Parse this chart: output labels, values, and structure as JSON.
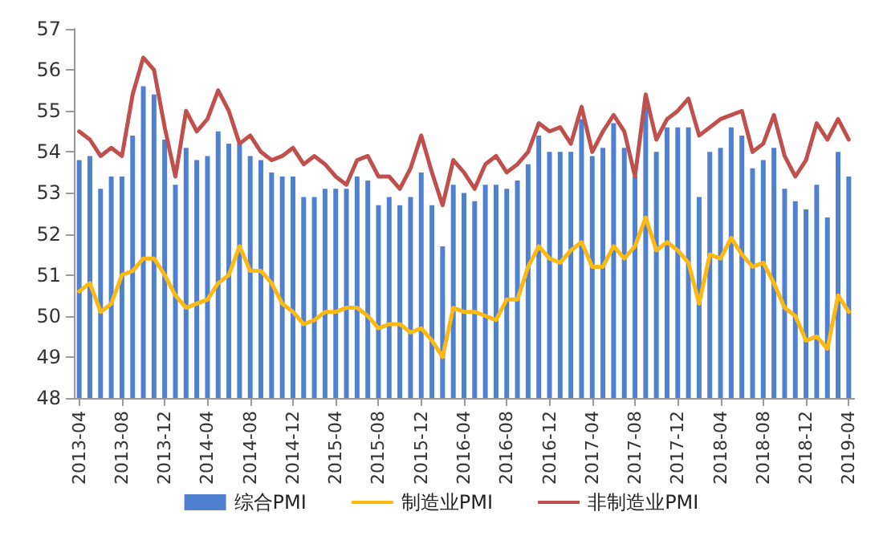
{
  "chart_data": {
    "type": "bar",
    "categories": [
      "2013-04",
      null,
      null,
      null,
      "2013-08",
      null,
      null,
      null,
      "2013-12",
      null,
      null,
      null,
      "2014-04",
      null,
      null,
      null,
      "2014-08",
      null,
      null,
      null,
      "2014-12",
      null,
      null,
      null,
      "2015-04",
      null,
      null,
      null,
      "2015-08",
      null,
      null,
      null,
      "2015-12",
      null,
      null,
      null,
      "2016-04",
      null,
      null,
      null,
      "2016-08",
      null,
      null,
      null,
      "2016-12",
      null,
      null,
      null,
      "2017-04",
      null,
      null,
      null,
      "2017-08",
      null,
      null,
      null,
      "2017-12",
      null,
      null,
      null,
      "2018-04",
      null,
      null,
      null,
      "2018-08",
      null,
      null,
      null,
      "2018-12",
      null,
      null,
      null,
      "2019-04"
    ],
    "series": [
      {
        "name": "综合PMI",
        "color": "#4f81d0",
        "values": [
          53.8,
          53.9,
          53.1,
          53.4,
          53.4,
          54.4,
          55.6,
          55.4,
          54.3,
          53.2,
          54.1,
          53.8,
          53.9,
          54.5,
          54.2,
          54.2,
          53.9,
          53.8,
          53.5,
          53.4,
          53.4,
          52.9,
          52.9,
          53.1,
          53.1,
          53.1,
          53.4,
          53.3,
          52.7,
          52.9,
          52.7,
          52.9,
          53.5,
          52.7,
          51.7,
          53.2,
          53.0,
          52.8,
          53.2,
          53.2,
          53.1,
          53.3,
          53.7,
          54.4,
          54.0,
          54.0,
          54.0,
          54.8,
          53.9,
          54.1,
          54.7,
          54.1,
          53.4,
          55.1,
          54.0,
          54.6,
          54.6,
          54.6,
          52.9,
          54.0,
          54.1,
          54.6,
          54.4,
          53.6,
          53.8,
          54.1,
          53.1,
          52.8,
          52.6,
          53.2,
          52.4,
          54.0,
          53.4
        ]
      },
      {
        "name": "制造业PMI",
        "type": "line",
        "color": "#fdb913",
        "values": [
          50.6,
          50.8,
          50.1,
          50.3,
          51.0,
          51.1,
          51.4,
          51.4,
          51.0,
          50.5,
          50.2,
          50.3,
          50.4,
          50.8,
          51.0,
          51.7,
          51.1,
          51.1,
          50.8,
          50.3,
          50.1,
          49.8,
          49.9,
          50.1,
          50.1,
          50.2,
          50.2,
          50.0,
          49.7,
          49.8,
          49.8,
          49.6,
          49.7,
          49.4,
          49.0,
          50.2,
          50.1,
          50.1,
          50.0,
          49.9,
          50.4,
          50.4,
          51.2,
          51.7,
          51.4,
          51.3,
          51.6,
          51.8,
          51.2,
          51.2,
          51.7,
          51.4,
          51.7,
          52.4,
          51.6,
          51.8,
          51.6,
          51.3,
          50.3,
          51.5,
          51.4,
          51.9,
          51.5,
          51.2,
          51.3,
          50.8,
          50.2,
          50.0,
          49.4,
          49.5,
          49.2,
          50.5,
          50.1
        ]
      },
      {
        "name": "非制造业PMI",
        "type": "line",
        "color": "#c0504d",
        "values": [
          54.5,
          54.3,
          53.9,
          54.1,
          53.9,
          55.4,
          56.3,
          56.0,
          54.6,
          53.4,
          55.0,
          54.5,
          54.8,
          55.5,
          55.0,
          54.2,
          54.4,
          54.0,
          53.8,
          53.9,
          54.1,
          53.7,
          53.9,
          53.7,
          53.4,
          53.2,
          53.8,
          53.9,
          53.4,
          53.4,
          53.1,
          53.6,
          54.4,
          53.5,
          52.7,
          53.8,
          53.5,
          53.1,
          53.7,
          53.9,
          53.5,
          53.7,
          54.0,
          54.7,
          54.5,
          54.6,
          54.2,
          55.1,
          54.0,
          54.5,
          54.9,
          54.5,
          53.4,
          55.4,
          54.3,
          54.8,
          55.0,
          55.3,
          54.4,
          54.6,
          54.8,
          54.9,
          55.0,
          54.0,
          54.2,
          54.9,
          53.9,
          53.4,
          53.8,
          54.7,
          54.3,
          54.8,
          54.3
        ]
      }
    ],
    "ylim": [
      48,
      57
    ],
    "yticks": [
      48,
      49,
      50,
      51,
      52,
      53,
      54,
      55,
      56,
      57
    ],
    "grid": false,
    "legend": "bottom",
    "marker": "none",
    "line_style": "solid"
  }
}
